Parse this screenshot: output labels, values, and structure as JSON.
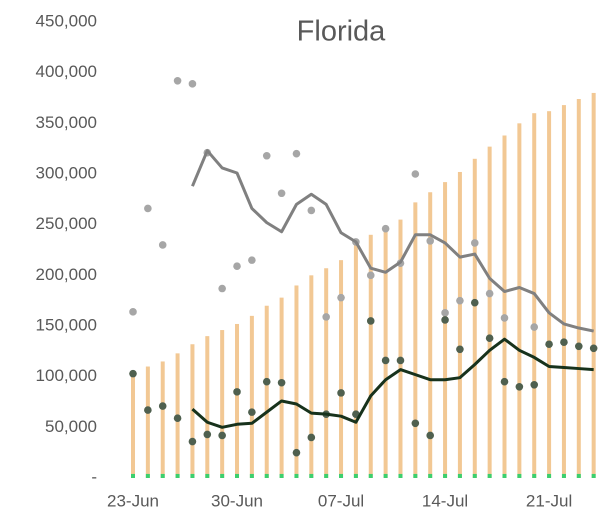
{
  "chart_data": {
    "type": "combo",
    "title": "Florida",
    "categories": [
      "23-Jun",
      null,
      null,
      null,
      null,
      null,
      null,
      "30-Jun",
      null,
      null,
      null,
      null,
      null,
      null,
      "07-Jul",
      null,
      null,
      null,
      null,
      null,
      null,
      "14-Jul",
      null,
      null,
      null,
      null,
      null,
      null,
      "21-Jul",
      null,
      null,
      null
    ],
    "ylim": [
      0,
      450000
    ],
    "yticks": [
      {
        "value": 0,
        "label": "-"
      },
      {
        "value": 50000,
        "label": "50,000"
      },
      {
        "value": 100000,
        "label": "100,000"
      },
      {
        "value": 150000,
        "label": "150,000"
      },
      {
        "value": 200000,
        "label": "200,000"
      },
      {
        "value": 250000,
        "label": "250,000"
      },
      {
        "value": 300000,
        "label": "300,000"
      },
      {
        "value": 350000,
        "label": "350,000"
      },
      {
        "value": 400000,
        "label": "400,000"
      },
      {
        "value": 450000,
        "label": "450,000"
      }
    ],
    "series": [
      {
        "type": "bar",
        "color": "#f2c894",
        "values": [
          103000,
          110000,
          115000,
          123000,
          132000,
          140000,
          146000,
          152000,
          160000,
          170000,
          178000,
          190000,
          200000,
          207000,
          215000,
          232000,
          240000,
          248000,
          255000,
          272000,
          282000,
          292000,
          302000,
          315000,
          327000,
          338000,
          350000,
          360000,
          362000,
          368000,
          374000,
          380000
        ]
      },
      {
        "type": "bar",
        "color": "#3ccf6e",
        "values": [
          4000,
          4000,
          4000,
          4000,
          4000,
          4000,
          4000,
          4000,
          4000,
          4000,
          4000,
          4000,
          4000,
          4000,
          4000,
          4000,
          4000,
          4000,
          4000,
          4000,
          4000,
          4000,
          4000,
          4000,
          4000,
          4000,
          4000,
          4000,
          4000,
          4000,
          4000,
          4000
        ]
      },
      {
        "type": "scatter",
        "color": "#a6a6a6",
        "values": [
          164000,
          266000,
          230000,
          392000,
          389000,
          321000,
          187000,
          209000,
          215000,
          318000,
          281000,
          320000,
          264000,
          159000,
          178000,
          233000,
          200000,
          246000,
          212000,
          300000,
          234000,
          163000,
          175000,
          232000,
          182000,
          158000,
          null,
          149000,
          null,
          null,
          null,
          null
        ]
      },
      {
        "type": "line",
        "color": "#808080",
        "values": [
          null,
          null,
          null,
          null,
          288000,
          323000,
          306000,
          301000,
          266000,
          252000,
          243000,
          270000,
          280000,
          270000,
          242000,
          233000,
          207000,
          203000,
          213000,
          240000,
          240000,
          232000,
          218000,
          221000,
          197000,
          184000,
          188000,
          182000,
          163000,
          152000,
          148000,
          145000
        ]
      },
      {
        "type": "scatter",
        "color": "#4f604f",
        "values": [
          103000,
          67000,
          71000,
          59000,
          36000,
          43000,
          42000,
          85000,
          65000,
          95000,
          94000,
          25000,
          40000,
          63000,
          84000,
          63000,
          155000,
          116000,
          116000,
          54000,
          42000,
          156000,
          127000,
          173000,
          138000,
          95000,
          90000,
          92000,
          132000,
          134000,
          130000,
          128000
        ]
      },
      {
        "type": "line",
        "color": "#17321c",
        "values": [
          null,
          null,
          null,
          null,
          68000,
          55000,
          50000,
          53000,
          54000,
          65000,
          76000,
          73000,
          64000,
          63000,
          61000,
          55000,
          81000,
          97000,
          107000,
          102000,
          97000,
          97000,
          99000,
          112000,
          126000,
          137000,
          126000,
          119000,
          110000,
          109000,
          108000,
          107000
        ]
      }
    ]
  }
}
